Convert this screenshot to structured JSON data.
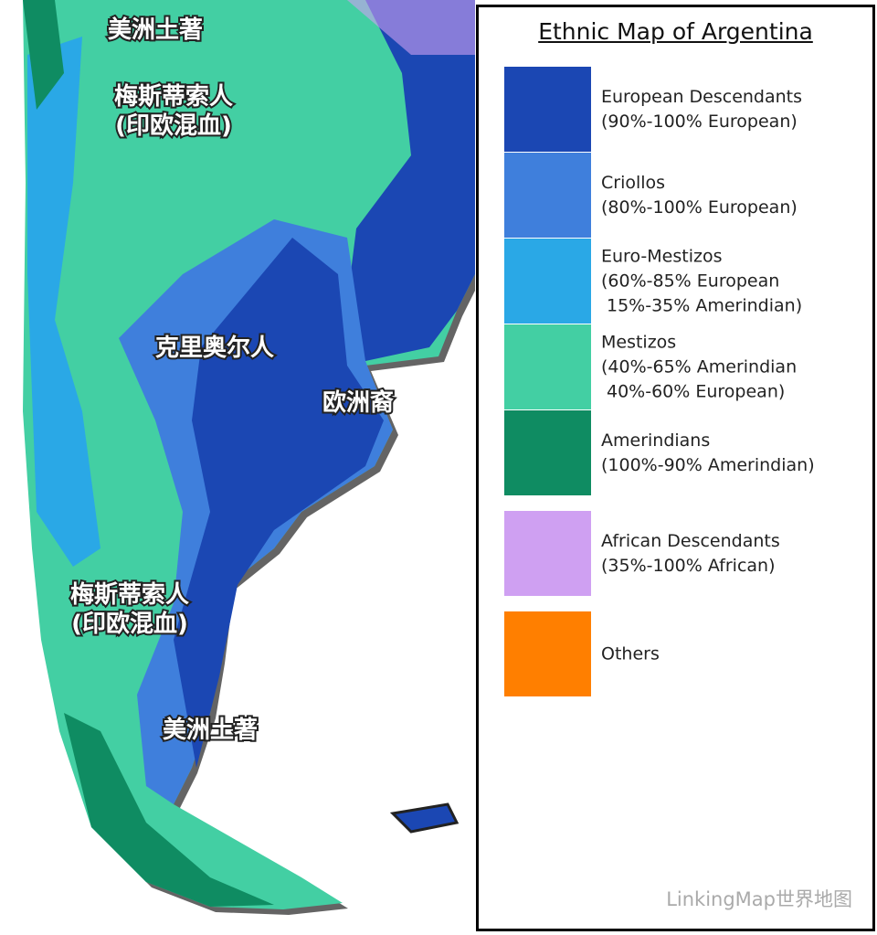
{
  "map": {
    "labels": [
      [
        "美洲土著"
      ],
      [
        "梅斯蒂索人",
        "(印欧混血)"
      ],
      [
        "克里奥尔人"
      ],
      [
        "欧洲裔"
      ],
      [
        "梅斯蒂索人",
        "(印欧混血)"
      ],
      [
        "美洲土著"
      ]
    ]
  },
  "legend": {
    "title": "Ethnic Map of Argentina",
    "items": [
      {
        "color": "#1b47b3",
        "lines": [
          "European Descendants",
          "(90%-100% European)"
        ]
      },
      {
        "color": "#3f7fdc",
        "lines": [
          "Criollos",
          "(80%-100% European)"
        ]
      },
      {
        "color": "#2aa8e6",
        "lines": [
          "Euro-Mestizos",
          "(60%-85% European",
          "15%-35% Amerindian)"
        ]
      },
      {
        "color": "#43cfa3",
        "lines": [
          "Mestizos",
          "(40%-65% Amerindian",
          "40%-60% European)"
        ]
      },
      {
        "color": "#0f8c62",
        "lines": [
          "Amerindians",
          "(100%-90% Amerindian)"
        ]
      },
      {
        "color": "#cfa0f2",
        "lines": [
          "African Descendants",
          "(35%-100% African)"
        ]
      },
      {
        "color": "#ff7f00",
        "lines": [
          "Others"
        ]
      }
    ]
  },
  "watermark": "LinkingMap世界地图"
}
